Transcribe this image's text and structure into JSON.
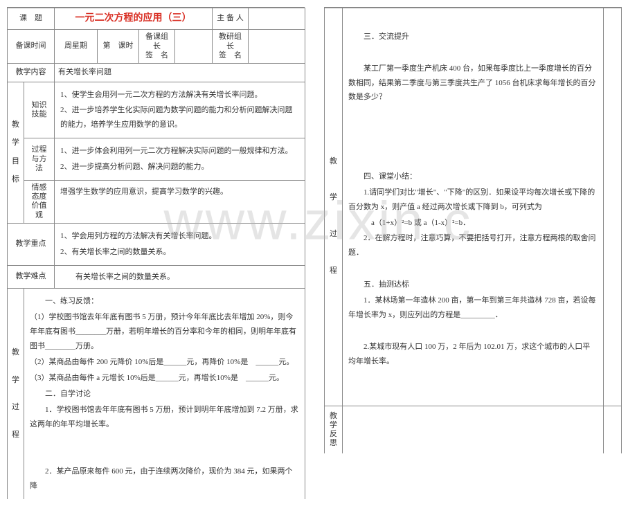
{
  "row1": {
    "c1": "课　题",
    "c2": "一元二次方程的应用（三）",
    "c3": "主 备 人",
    "c4": ""
  },
  "row2": {
    "c1": "备课时间",
    "c2": "周星期",
    "c3": "第　课时",
    "c4a": "备课组长",
    "c4b": "签　名",
    "c5": "",
    "c6a": "教研组长",
    "c6b": "签　名",
    "c7": ""
  },
  "row3": {
    "c1": "教学内容",
    "c2": "有关增长率问题"
  },
  "goalsLabel": "教学目标",
  "goals": {
    "r1l": "知识技能",
    "r1": "1、使学生会用列一元二次方程的方法解决有关增长率问题。\n2、进一步培养学生化实际问题为数学问题的能力和分析问题解决问题的能力，培养学生应用数学的意识。",
    "r2l": "过程与方法",
    "r2": "1、进一步体会利用列一元二次方程解决实际问题的一般规律和方法。\n2、进一步提高分析问题、解决问题的能力。",
    "r3l": "情感态度价值观",
    "r3": "增强学生数学的应用意识，提高学习数学的兴趣。"
  },
  "keypoint": {
    "label": "教学重点",
    "text": "1、学会用列方程的方法解决有关增长率问题。\n2、有关增长率之间的数量关系。"
  },
  "diffpoint": {
    "label": "教学难点",
    "text": "　　有关增长率之间的数量关系。"
  },
  "procLabel": "教学过程",
  "proc1": [
    "　　一、练习反馈：",
    "（1）学校图书馆去年年底有图书 5 万册，预计今年年底比去年增加 20%，则今年年底有图书________万册，若明年增长的百分率和今年的相同，则明年年底有图书________万册。",
    "（2）某商品由每件 200 元降价 10%后是______元，再降价 10%是　______元。",
    "（3）某商品由每件 a 元增长 10%后是______元，再增长10%是　______元。",
    "　　二．自学讨论",
    "　　1．学校图书馆去年年底有图书 5 万册，预计到明年年底增加到 7.2 万册，求这两年的年平均增长率。",
    "　",
    "　",
    "　　2．某产品原来每件 600 元，由于连续两次降价，现价为 384 元，如果两个降"
  ],
  "proc2Label": "教学过程",
  "proc2": [
    "　",
    "　　三．交流提升",
    "　",
    "　　某工厂第一季度生产机床 400 台，如果每季度比上一季度增长的百分数相同，结果第二季度与第三季度共生产了 1056 台机床求每年增长的百分数是多少？",
    "　",
    "　",
    "　",
    "　",
    "　　四、课堂小结：",
    "　　1.请同学们对比\"增长\"、\"下降\"的区别．如果设平均每次增长或下降的百分数为 x，则产值 a 经过两次增长或下降到 b，可列式为",
    "　　　a（1+x）²=b 或 a（1-x）²=b．",
    "　　2．在解方程时，注意巧算，不要把括号打开，注意方程两根的取舍问题．",
    "　",
    "　　五．抽测达标",
    "　　1．某林场第一年造林 200 亩，第一年到第三年共造林 728 亩，若设每年增长率为 x，则应列出的方程是_________．",
    "　",
    "　　2.某城市现有人口 100 万，2 年后为 102.01 万，求这个城市的人口平均年增长率。",
    "　",
    "　"
  ],
  "reflectLabel": "教学反思"
}
